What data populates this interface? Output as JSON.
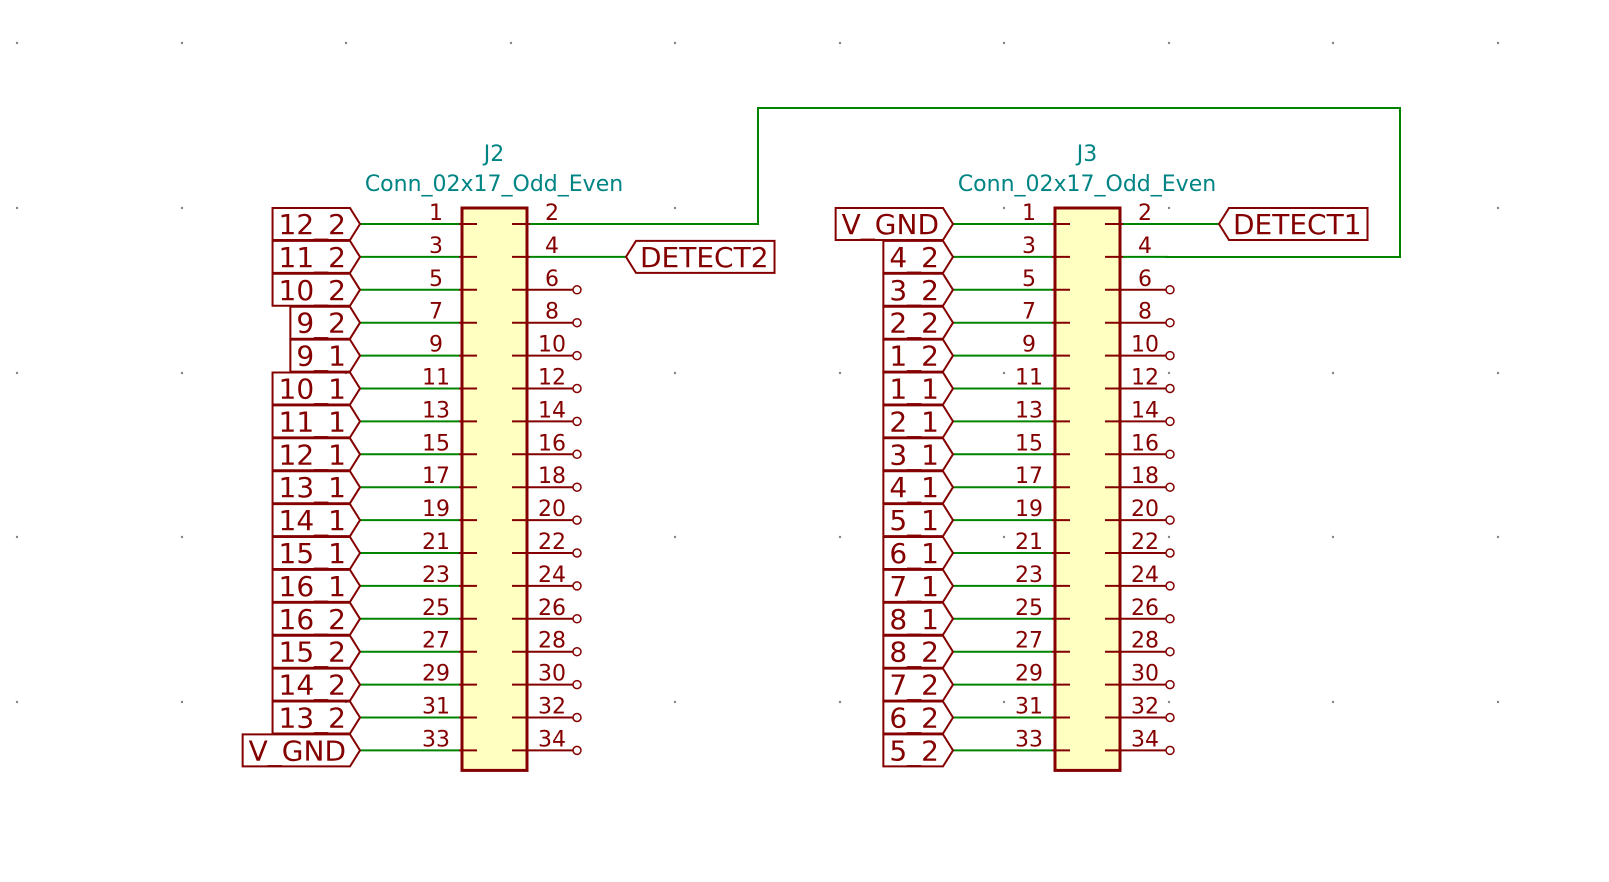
{
  "colors": {
    "wire": "#008400",
    "symbol": "#840000",
    "body_fill": "#ffffc2",
    "reference": "#008484",
    "grid": "#848484",
    "background": "#ffffff"
  },
  "components": [
    {
      "id": "J2",
      "reference": "J2",
      "value": "Conn_02x17_Odd_Even",
      "left_pins": [
        {
          "pin": "1",
          "net": "12_2"
        },
        {
          "pin": "3",
          "net": "11_2"
        },
        {
          "pin": "5",
          "net": "10_2"
        },
        {
          "pin": "7",
          "net": "9_2"
        },
        {
          "pin": "9",
          "net": "9_1"
        },
        {
          "pin": "11",
          "net": "10_1"
        },
        {
          "pin": "13",
          "net": "11_1"
        },
        {
          "pin": "15",
          "net": "12_1"
        },
        {
          "pin": "17",
          "net": "13_1"
        },
        {
          "pin": "19",
          "net": "14_1"
        },
        {
          "pin": "21",
          "net": "15_1"
        },
        {
          "pin": "23",
          "net": "16_1"
        },
        {
          "pin": "25",
          "net": "16_2"
        },
        {
          "pin": "27",
          "net": "15_2"
        },
        {
          "pin": "29",
          "net": "14_2"
        },
        {
          "pin": "31",
          "net": "13_2"
        },
        {
          "pin": "33",
          "net": "V_GND"
        }
      ],
      "right_pins": [
        {
          "pin": "2",
          "net": "wire"
        },
        {
          "pin": "4",
          "net": "DETECT2"
        },
        {
          "pin": "6",
          "net": null
        },
        {
          "pin": "8",
          "net": null
        },
        {
          "pin": "10",
          "net": null
        },
        {
          "pin": "12",
          "net": null
        },
        {
          "pin": "14",
          "net": null
        },
        {
          "pin": "16",
          "net": null
        },
        {
          "pin": "18",
          "net": null
        },
        {
          "pin": "20",
          "net": null
        },
        {
          "pin": "22",
          "net": null
        },
        {
          "pin": "24",
          "net": null
        },
        {
          "pin": "26",
          "net": null
        },
        {
          "pin": "28",
          "net": null
        },
        {
          "pin": "30",
          "net": null
        },
        {
          "pin": "32",
          "net": null
        },
        {
          "pin": "34",
          "net": null
        }
      ]
    },
    {
      "id": "J3",
      "reference": "J3",
      "value": "Conn_02x17_Odd_Even",
      "left_pins": [
        {
          "pin": "1",
          "net": "V_GND"
        },
        {
          "pin": "3",
          "net": "4_2"
        },
        {
          "pin": "5",
          "net": "3_2"
        },
        {
          "pin": "7",
          "net": "2_2"
        },
        {
          "pin": "9",
          "net": "1_2"
        },
        {
          "pin": "11",
          "net": "1_1"
        },
        {
          "pin": "13",
          "net": "2_1"
        },
        {
          "pin": "15",
          "net": "3_1"
        },
        {
          "pin": "17",
          "net": "4_1"
        },
        {
          "pin": "19",
          "net": "5_1"
        },
        {
          "pin": "21",
          "net": "6_1"
        },
        {
          "pin": "23",
          "net": "7_1"
        },
        {
          "pin": "25",
          "net": "8_1"
        },
        {
          "pin": "27",
          "net": "8_2"
        },
        {
          "pin": "29",
          "net": "7_2"
        },
        {
          "pin": "31",
          "net": "6_2"
        },
        {
          "pin": "33",
          "net": "5_2"
        }
      ],
      "right_pins": [
        {
          "pin": "2",
          "net": "DETECT1"
        },
        {
          "pin": "4",
          "net": "wire"
        },
        {
          "pin": "6",
          "net": null
        },
        {
          "pin": "8",
          "net": null
        },
        {
          "pin": "10",
          "net": null
        },
        {
          "pin": "12",
          "net": null
        },
        {
          "pin": "14",
          "net": null
        },
        {
          "pin": "16",
          "net": null
        },
        {
          "pin": "18",
          "net": null
        },
        {
          "pin": "20",
          "net": null
        },
        {
          "pin": "22",
          "net": null
        },
        {
          "pin": "24",
          "net": null
        },
        {
          "pin": "26",
          "net": null
        },
        {
          "pin": "28",
          "net": null
        },
        {
          "pin": "30",
          "net": null
        },
        {
          "pin": "32",
          "net": null
        },
        {
          "pin": "34",
          "net": null
        }
      ]
    }
  ]
}
